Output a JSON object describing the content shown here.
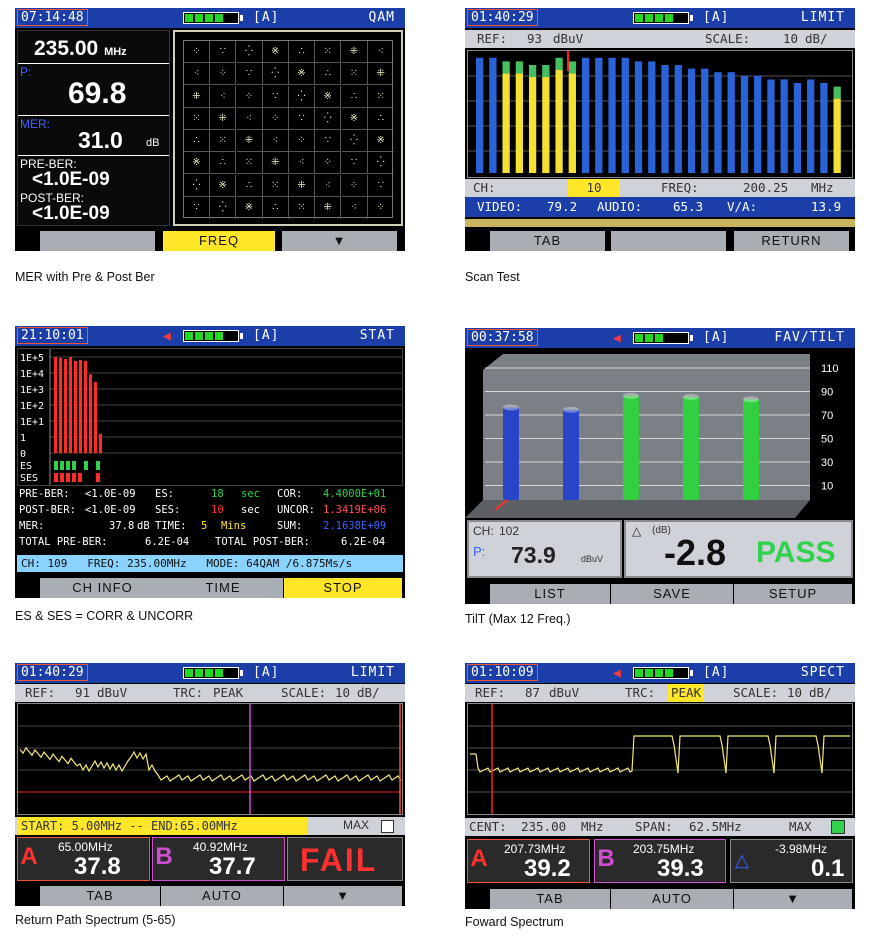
{
  "screens": [
    {
      "time": "07:14:48",
      "mode": "[A]",
      "title": "QAM",
      "freq_value": "235.00",
      "freq_unit": "MHz",
      "p_label": "P:",
      "p_value": "69.8",
      "mer_label": "MER:",
      "mer_value": "31.0",
      "mer_unit": "dB",
      "pre_ber_label": "PRE-BER:",
      "pre_ber_value": "<1.0E-09",
      "post_ber_label": "POST-BER:",
      "post_ber_value": "<1.0E-09",
      "softkeys": [
        "",
        "FREQ",
        "▼"
      ],
      "caption": "MER with Pre & Post Ber"
    },
    {
      "time": "01:40:29",
      "mode": "[A]",
      "title": "LIMIT",
      "ref_label": "REF:",
      "ref_value": "93",
      "ref_unit": "dBuV",
      "scale_label": "SCALE:",
      "scale_value": "10",
      "scale_unit": "dB/",
      "ch_label": "CH:",
      "ch_value": "10",
      "freq_label": "FREQ:",
      "freq_value": "200.25",
      "freq_unit": "MHz",
      "video_label": "VIDEO:",
      "video_value": "79.2",
      "audio_label": "AUDIO:",
      "audio_value": "65.3",
      "va_label": "V/A:",
      "va_value": "13.9",
      "softkeys": [
        "TAB",
        "",
        "RETURN"
      ],
      "caption": "Scan Test"
    },
    {
      "time": "21:10:01",
      "mode": "[A]",
      "title": "STAT",
      "y_ticks": [
        "1E+5",
        "1E+4",
        "1E+3",
        "1E+2",
        "1E+1",
        "1",
        "0"
      ],
      "es_label": "ES",
      "ses_label": "SES",
      "rows": [
        [
          "PRE-BER:",
          "<1.0E-09",
          "ES:",
          "18",
          "sec",
          "COR:",
          "4.4000E+01"
        ],
        [
          "POST-BER:",
          "<1.0E-09",
          "SES:",
          "10",
          "sec",
          "UNCOR:",
          "1.3419E+06"
        ],
        [
          "MER:",
          "37.8",
          "dB",
          "TIME:",
          "5",
          "Mins",
          "SUM:",
          "2.1638E+09"
        ]
      ],
      "total_pre_label": "TOTAL PRE-BER:",
      "total_pre_value": "6.2E-04",
      "total_post_label": "TOTAL POST-BER:",
      "total_post_value": "6.2E-04",
      "ch_line": "CH: 109   FREQ: 235.00MHz   MODE: 64QAM /6.875Ms/s",
      "softkeys": [
        "CH INFO",
        "TIME",
        "STOP"
      ],
      "caption": "ES & SES =  CORR & UNCORR"
    },
    {
      "time": "00:37:58",
      "mode": "[A]",
      "title": "FAV/TILT",
      "y_ticks": [
        "110",
        "90",
        "70",
        "50",
        "30",
        "10"
      ],
      "ch_label": "CH:",
      "ch_value": "102",
      "p_label": "P:",
      "p_value": "73.9",
      "p_unit": "dBuV",
      "delta_unit": "(dB)",
      "delta_value": "-2.8",
      "result": "PASS",
      "softkeys": [
        "LIST",
        "SAVE",
        "SETUP"
      ],
      "caption": "TilT (Max 12 Freq.)"
    },
    {
      "time": "01:40:29",
      "mode": "[A]",
      "title": "LIMIT",
      "ref_label": "REF:",
      "ref_value": "91",
      "ref_unit": "dBuV",
      "trc_label": "TRC:",
      "trc_value": "PEAK",
      "scale_label": "SCALE:",
      "scale_value": "10",
      "scale_unit": "dB/",
      "range_text": "START: 5.00MHz -- END:65.00MHz",
      "max_label": "MAX",
      "marker_a_freq": "65.00MHz",
      "marker_a_value": "37.8",
      "marker_b_freq": "40.92MHz",
      "marker_b_value": "37.7",
      "result": "FAIL",
      "softkeys": [
        "TAB",
        "AUTO",
        "▼"
      ],
      "caption": "Return Path Spectrum (5-65)"
    },
    {
      "time": "01:10:09",
      "mode": "[A]",
      "title": "SPECT",
      "ref_label": "REF:",
      "ref_value": "87",
      "ref_unit": "dBuV",
      "trc_label": "TRC:",
      "trc_value": "PEAK",
      "scale_label": "SCALE:",
      "scale_value": "10",
      "scale_unit": "dB/",
      "cent_label": "CENT:",
      "cent_value": "235.00",
      "cent_unit": "MHz",
      "span_label": "SPAN:",
      "span_value": "62.5MHz",
      "max_label": "MAX",
      "marker_a_freq": "207.73MHz",
      "marker_a_value": "39.2",
      "marker_b_freq": "203.75MHz",
      "marker_b_value": "39.3",
      "delta_freq": "-3.98MHz",
      "delta_value": "0.1",
      "softkeys": [
        "TAB",
        "AUTO",
        "▼"
      ],
      "caption": "Foward Spectrum"
    }
  ],
  "scan_bars": {
    "blue": [
      92,
      92,
      92,
      92,
      92,
      92,
      92,
      92,
      92,
      92,
      92,
      92,
      91,
      91,
      90,
      90,
      89,
      89,
      88,
      88,
      87,
      87,
      86,
      86,
      85,
      86,
      85,
      84
    ],
    "yellow_channels": [
      2,
      3,
      4,
      5,
      6,
      7,
      27
    ],
    "yellow_levels": [
      91,
      91,
      90,
      90,
      92,
      91,
      84
    ]
  },
  "tilt_bars": {
    "colors": [
      "#2844c8",
      "#2844c8",
      "#30d040",
      "#30d040",
      "#30d040"
    ],
    "values": [
      72,
      70,
      82,
      81,
      79
    ]
  },
  "stat_bars": [
    100,
    99,
    98,
    100,
    96,
    97,
    96,
    82,
    74,
    20
  ],
  "colors": {
    "topbar": "#1c3ea8",
    "highlight": "#ffe629",
    "pass": "#2fd24a",
    "fail": "#ff3030"
  }
}
